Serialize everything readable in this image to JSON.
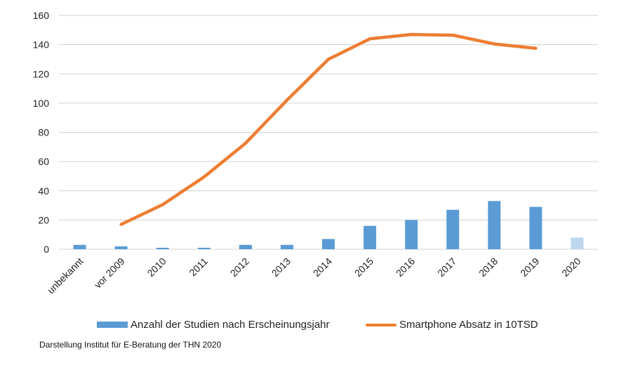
{
  "chart_data": {
    "type": "bar+line",
    "categories": [
      "unbekannt",
      "vor 2009",
      "2010",
      "2011",
      "2012",
      "2013",
      "2014",
      "2015",
      "2016",
      "2017",
      "2018",
      "2019",
      "2020"
    ],
    "series": [
      {
        "name": "Anzahl der Studien nach Erscheinungsjahr",
        "type": "bar",
        "color": "#5b9bd5",
        "highlight_color": "#bdd7ee",
        "values": [
          3,
          2,
          1,
          1,
          3,
          3,
          7,
          16,
          20,
          27,
          33,
          29,
          8
        ]
      },
      {
        "name": "Smartphone Absatz in 10TSD",
        "type": "line",
        "color": "#ed7d31",
        "values": [
          null,
          17,
          30.5,
          49.5,
          72.5,
          102,
          130,
          144,
          147,
          146.5,
          140.5,
          137.5,
          null
        ]
      }
    ],
    "y_ticks": [
      0,
      20,
      40,
      60,
      80,
      100,
      120,
      140,
      160
    ],
    "ylim": [
      0,
      160
    ],
    "grid": "horizontal",
    "legend_position": "bottom",
    "source": "Darstellung Institut für E-Beratung der THN 2020"
  }
}
